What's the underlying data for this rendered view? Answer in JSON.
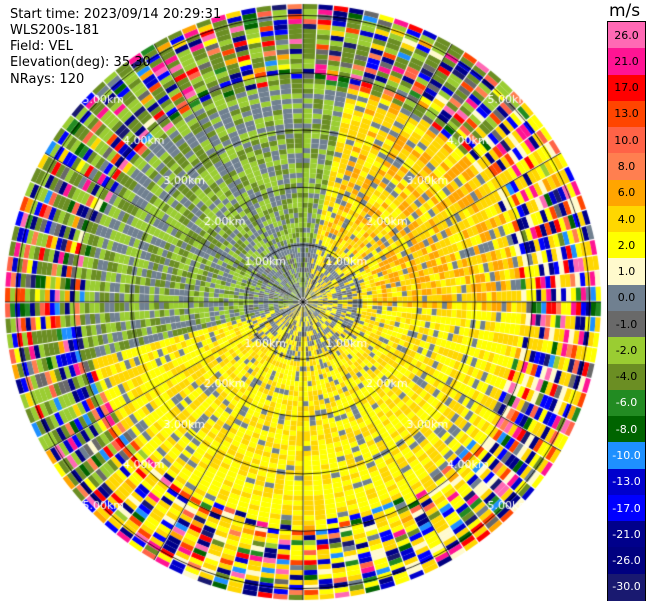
{
  "info": {
    "start_time": "Start time: 2023/09/14 20:29:31",
    "instrument": "WLS200s-181",
    "field": "Field: VEL",
    "elevation": "Elevation(deg): 35.30",
    "nrays": "NRays: 120"
  },
  "colorbar": {
    "unit": "m/s",
    "labels": [
      "26.0",
      "21.0",
      "17.0",
      "13.0",
      "10.0",
      "8.0",
      "6.0",
      "4.0",
      "2.0",
      "1.0",
      "0.0",
      "-1.0",
      "-2.0",
      "-4.0",
      "-6.0",
      "-8.0",
      "-10.0",
      "-13.0",
      "-17.0",
      "-21.0",
      "-26.0",
      "-30.0"
    ],
    "colors": [
      "#ff69b4",
      "#ff1493",
      "#ff0000",
      "#ff4500",
      "#ff6347",
      "#ff7f50",
      "#ffa500",
      "#ffd700",
      "#ffff00",
      "#fffacd",
      "#708090",
      "#696969",
      "#9acd32",
      "#6b8e23",
      "#228b22",
      "#006400",
      "#1e90ff",
      "#0000cd",
      "#0000ff",
      "#00008b",
      "#000080",
      "#191970"
    ]
  },
  "chart_data": {
    "type": "ppi",
    "field": "VEL",
    "units": "m/s",
    "elevation_deg": 35.3,
    "n_rays": 120,
    "vmin": -30.0,
    "vmax": 26.0,
    "range_rings_km": [
      1.0,
      2.0,
      3.0,
      4.0,
      5.0
    ],
    "range_ring_labels": [
      "1.00km",
      "2.00km",
      "3.00km",
      "4.00km",
      "5.00km"
    ],
    "max_range_km": 5.2,
    "spokes_deg": [
      0,
      30,
      60,
      90,
      120,
      150,
      180,
      210,
      240,
      270,
      300,
      330
    ],
    "velocity_pattern": {
      "near_range_dominant": "0.0 to -4.0 m/s (grey/yellow-green) in the west and near the radar",
      "mid_range_east_south": "1.0 to 6.0 m/s (yellow/orange) toward the east and south",
      "far_range": "noisy values spanning -30.0 to 26.0 m/s beyond about 4 km"
    },
    "grid": true
  }
}
